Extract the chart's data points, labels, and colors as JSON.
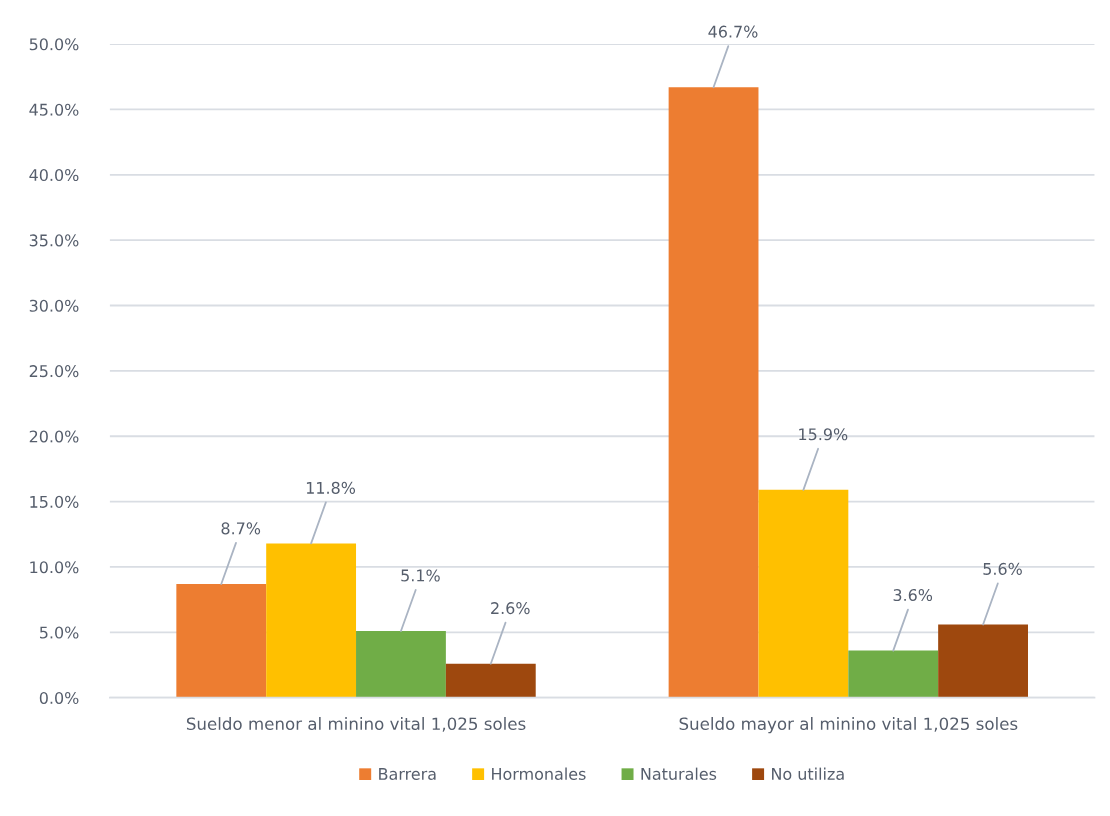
{
  "chart_data": {
    "type": "bar",
    "categories": [
      "Sueldo menor al minino vital 1,025 soles",
      "Sueldo mayor al minino vital 1,025 soles"
    ],
    "series": [
      {
        "name": "Barrera",
        "color": "#ed7d31",
        "values": [
          8.7,
          46.7
        ],
        "value_labels": [
          "8.7%",
          "46.7%"
        ]
      },
      {
        "name": "Hormonales",
        "color": "#ffc000",
        "values": [
          11.8,
          15.9
        ],
        "value_labels": [
          "11.8%",
          "15.9%"
        ]
      },
      {
        "name": "Naturales",
        "color": "#70ad47",
        "values": [
          5.1,
          3.6
        ],
        "value_labels": [
          "5.1%",
          "3.6%"
        ]
      },
      {
        "name": "No utiliza",
        "color": "#9e480e",
        "values": [
          2.6,
          5.6
        ],
        "value_labels": [
          "2.6%",
          "5.6%"
        ]
      }
    ],
    "ylim": [
      0,
      50
    ],
    "yticks": [
      {
        "value": 0,
        "label": "0.0%"
      },
      {
        "value": 5,
        "label": "5.0%"
      },
      {
        "value": 10,
        "label": "10.0%"
      },
      {
        "value": 15,
        "label": "15.0%"
      },
      {
        "value": 20,
        "label": "20.0%"
      },
      {
        "value": 25,
        "label": "25.0%"
      },
      {
        "value": 30,
        "label": "30.0%"
      },
      {
        "value": 35,
        "label": "35.0%"
      },
      {
        "value": 40,
        "label": "40.0%"
      },
      {
        "value": 45,
        "label": "45.0%"
      },
      {
        "value": 50,
        "label": "50.0%"
      }
    ],
    "grid": "y",
    "legend": "bottom"
  }
}
